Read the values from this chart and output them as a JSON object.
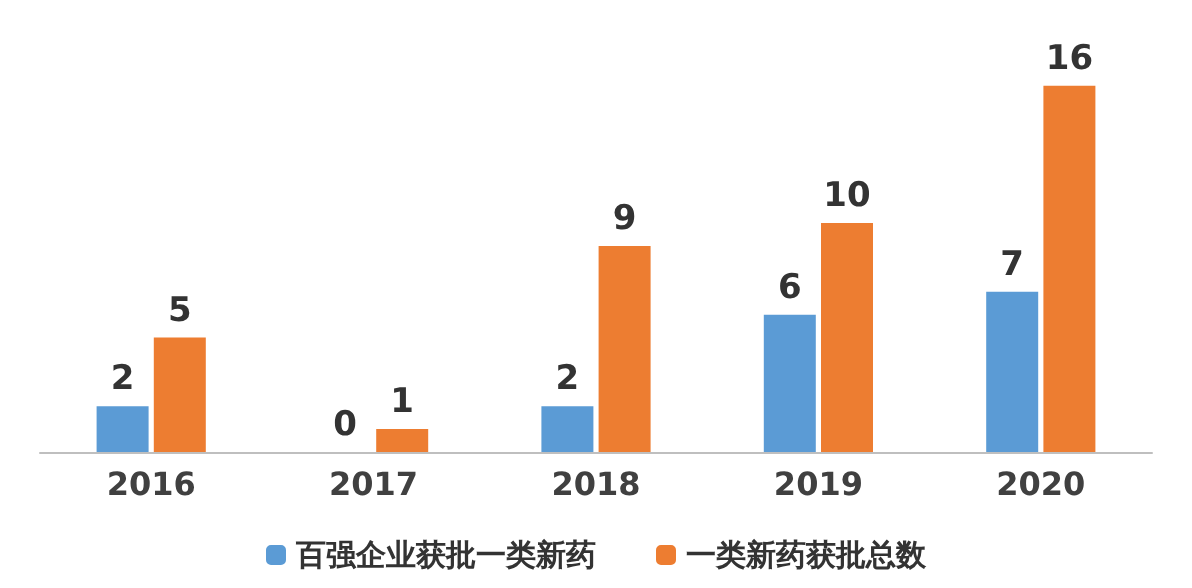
{
  "chart_data": {
    "type": "bar",
    "categories": [
      "2016",
      "2017",
      "2018",
      "2019",
      "2020"
    ],
    "series": [
      {
        "name": "百强企业获批一类新药",
        "color": "#5b9bd5",
        "values": [
          2,
          0,
          2,
          6,
          7
        ]
      },
      {
        "name": "一类新药获批总数",
        "color": "#ed7d31",
        "values": [
          5,
          1,
          9,
          10,
          16
        ]
      }
    ],
    "data_labels": true,
    "legend": "bottom"
  }
}
